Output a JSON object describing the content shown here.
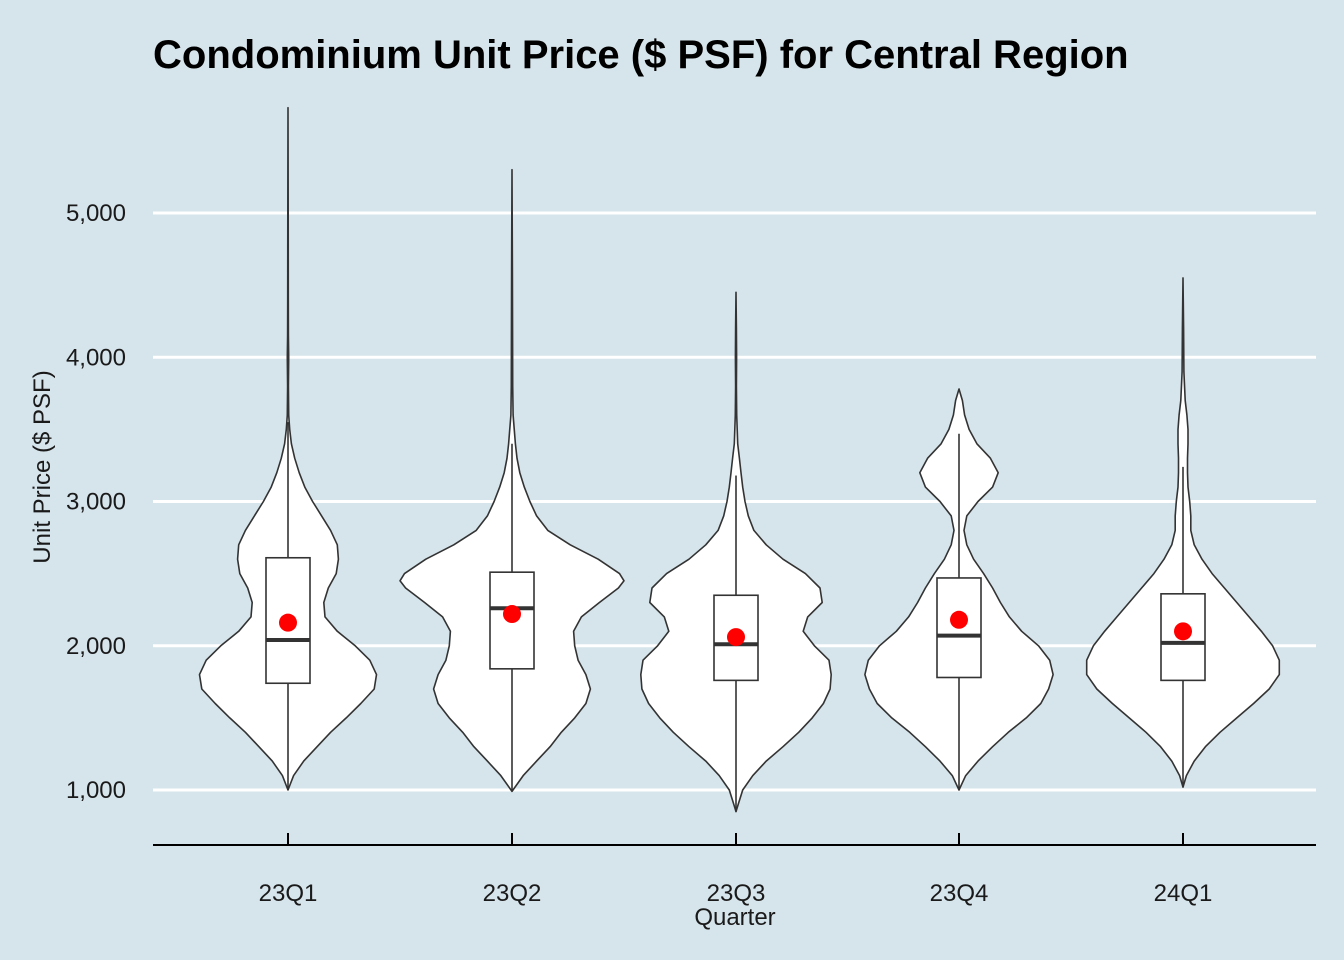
{
  "chart_data": {
    "type": "violin",
    "title": "Condominium Unit Price ($ PSF) for Central Region",
    "xlabel": "Quarter",
    "ylabel": "Unit Price ($ PSF)",
    "ylim": [
      800,
      5800
    ],
    "yticks": [
      1000,
      2000,
      3000,
      4000,
      5000
    ],
    "ytick_labels": [
      "1,000",
      "2,000",
      "3,000",
      "4,000",
      "5,000"
    ],
    "categories": [
      "23Q1",
      "23Q2",
      "23Q3",
      "23Q4",
      "24Q1"
    ],
    "colors": {
      "background": "#d6e4eb",
      "violin_fill": "#ffffff",
      "outline": "#333333",
      "gridline": "#ffffff",
      "mean_point": "#ff0000"
    },
    "series": [
      {
        "name": "23Q1",
        "min": 1000,
        "max": 5730,
        "box": {
          "q1": 1740,
          "median": 2040,
          "q3": 2610,
          "whisker_low": 1000,
          "whisker_high": 3550
        },
        "mean": 2160,
        "density": [
          [
            1000,
            0.0
          ],
          [
            1100,
            0.05
          ],
          [
            1200,
            0.14
          ],
          [
            1300,
            0.26
          ],
          [
            1400,
            0.38
          ],
          [
            1500,
            0.52
          ],
          [
            1600,
            0.65
          ],
          [
            1700,
            0.77
          ],
          [
            1800,
            0.79
          ],
          [
            1900,
            0.73
          ],
          [
            2000,
            0.6
          ],
          [
            2100,
            0.44
          ],
          [
            2200,
            0.33
          ],
          [
            2300,
            0.32
          ],
          [
            2400,
            0.36
          ],
          [
            2500,
            0.43
          ],
          [
            2600,
            0.45
          ],
          [
            2700,
            0.44
          ],
          [
            2800,
            0.38
          ],
          [
            2900,
            0.3
          ],
          [
            3000,
            0.22
          ],
          [
            3100,
            0.15
          ],
          [
            3200,
            0.1
          ],
          [
            3300,
            0.06
          ],
          [
            3400,
            0.03
          ],
          [
            3500,
            0.015
          ],
          [
            3600,
            0.006
          ],
          [
            3800,
            0.004
          ],
          [
            4000,
            0.006
          ],
          [
            4150,
            0.004
          ],
          [
            4400,
            0.003
          ],
          [
            5000,
            0.002
          ],
          [
            5730,
            0.0
          ]
        ]
      },
      {
        "name": "23Q2",
        "min": 990,
        "max": 5300,
        "box": {
          "q1": 1840,
          "median": 2260,
          "q3": 2510,
          "whisker_low": 990,
          "whisker_high": 3400
        },
        "mean": 2220,
        "density": [
          [
            990,
            0.0
          ],
          [
            1100,
            0.1
          ],
          [
            1200,
            0.22
          ],
          [
            1300,
            0.34
          ],
          [
            1400,
            0.44
          ],
          [
            1500,
            0.56
          ],
          [
            1600,
            0.66
          ],
          [
            1700,
            0.7
          ],
          [
            1800,
            0.66
          ],
          [
            1900,
            0.59
          ],
          [
            2000,
            0.56
          ],
          [
            2100,
            0.55
          ],
          [
            2200,
            0.62
          ],
          [
            2300,
            0.78
          ],
          [
            2400,
            0.95
          ],
          [
            2450,
            1.0
          ],
          [
            2500,
            0.96
          ],
          [
            2600,
            0.77
          ],
          [
            2700,
            0.52
          ],
          [
            2800,
            0.32
          ],
          [
            2900,
            0.22
          ],
          [
            3000,
            0.16
          ],
          [
            3100,
            0.11
          ],
          [
            3200,
            0.07
          ],
          [
            3300,
            0.045
          ],
          [
            3400,
            0.03
          ],
          [
            3600,
            0.01
          ],
          [
            3800,
            0.006
          ],
          [
            4100,
            0.005
          ],
          [
            4600,
            0.004
          ],
          [
            5300,
            0.0
          ]
        ]
      },
      {
        "name": "23Q3",
        "min": 850,
        "max": 4450,
        "box": {
          "q1": 1760,
          "median": 2010,
          "q3": 2350,
          "whisker_low": 850,
          "whisker_high": 3180
        },
        "mean": 2060,
        "density": [
          [
            850,
            0.0
          ],
          [
            900,
            0.02
          ],
          [
            1000,
            0.06
          ],
          [
            1100,
            0.15
          ],
          [
            1200,
            0.27
          ],
          [
            1300,
            0.42
          ],
          [
            1400,
            0.56
          ],
          [
            1500,
            0.68
          ],
          [
            1600,
            0.78
          ],
          [
            1700,
            0.84
          ],
          [
            1800,
            0.85
          ],
          [
            1900,
            0.83
          ],
          [
            2000,
            0.7
          ],
          [
            2100,
            0.6
          ],
          [
            2200,
            0.64
          ],
          [
            2300,
            0.77
          ],
          [
            2400,
            0.75
          ],
          [
            2500,
            0.62
          ],
          [
            2600,
            0.42
          ],
          [
            2700,
            0.27
          ],
          [
            2800,
            0.16
          ],
          [
            2900,
            0.11
          ],
          [
            3000,
            0.08
          ],
          [
            3100,
            0.06
          ],
          [
            3200,
            0.045
          ],
          [
            3300,
            0.03
          ],
          [
            3400,
            0.015
          ],
          [
            3600,
            0.006
          ],
          [
            3800,
            0.004
          ],
          [
            4000,
            0.005
          ],
          [
            4200,
            0.004
          ],
          [
            4450,
            0.0
          ]
        ]
      },
      {
        "name": "23Q4",
        "min": 1000,
        "max": 3780,
        "box": {
          "q1": 1780,
          "median": 2070,
          "q3": 2470,
          "whisker_low": 1000,
          "whisker_high": 3470
        },
        "mean": 2180,
        "density": [
          [
            1000,
            0.0
          ],
          [
            1100,
            0.06
          ],
          [
            1200,
            0.17
          ],
          [
            1300,
            0.3
          ],
          [
            1400,
            0.44
          ],
          [
            1500,
            0.6
          ],
          [
            1600,
            0.73
          ],
          [
            1700,
            0.8
          ],
          [
            1800,
            0.84
          ],
          [
            1900,
            0.81
          ],
          [
            2000,
            0.71
          ],
          [
            2100,
            0.56
          ],
          [
            2200,
            0.45
          ],
          [
            2300,
            0.37
          ],
          [
            2400,
            0.3
          ],
          [
            2500,
            0.22
          ],
          [
            2600,
            0.13
          ],
          [
            2700,
            0.07
          ],
          [
            2800,
            0.045
          ],
          [
            2900,
            0.07
          ],
          [
            3000,
            0.17
          ],
          [
            3100,
            0.3
          ],
          [
            3200,
            0.35
          ],
          [
            3300,
            0.28
          ],
          [
            3400,
            0.16
          ],
          [
            3500,
            0.09
          ],
          [
            3600,
            0.05
          ],
          [
            3700,
            0.03
          ],
          [
            3780,
            0.0
          ]
        ]
      },
      {
        "name": "24Q1",
        "min": 1020,
        "max": 4550,
        "box": {
          "q1": 1760,
          "median": 2020,
          "q3": 2360,
          "whisker_low": 1020,
          "whisker_high": 3240
        },
        "mean": 2100,
        "density": [
          [
            1020,
            0.0
          ],
          [
            1100,
            0.03
          ],
          [
            1200,
            0.1
          ],
          [
            1300,
            0.2
          ],
          [
            1400,
            0.33
          ],
          [
            1500,
            0.48
          ],
          [
            1600,
            0.63
          ],
          [
            1700,
            0.77
          ],
          [
            1800,
            0.86
          ],
          [
            1900,
            0.86
          ],
          [
            2000,
            0.8
          ],
          [
            2100,
            0.7
          ],
          [
            2200,
            0.59
          ],
          [
            2300,
            0.48
          ],
          [
            2400,
            0.37
          ],
          [
            2500,
            0.26
          ],
          [
            2600,
            0.17
          ],
          [
            2700,
            0.1
          ],
          [
            2800,
            0.07
          ],
          [
            2900,
            0.07
          ],
          [
            3000,
            0.06
          ],
          [
            3100,
            0.045
          ],
          [
            3200,
            0.04
          ],
          [
            3300,
            0.04
          ],
          [
            3400,
            0.045
          ],
          [
            3500,
            0.045
          ],
          [
            3600,
            0.035
          ],
          [
            3700,
            0.02
          ],
          [
            3900,
            0.008
          ],
          [
            4200,
            0.005
          ],
          [
            4550,
            0.0
          ]
        ]
      }
    ]
  }
}
